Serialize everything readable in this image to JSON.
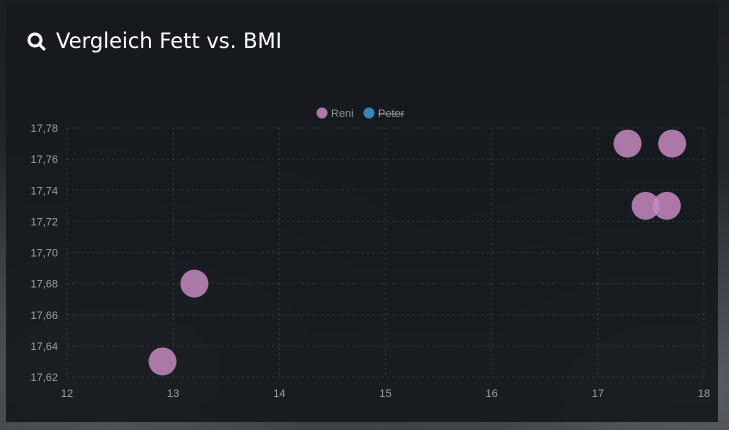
{
  "header": {
    "title": "Vergleich Fett vs. BMI",
    "icon": "search-icon"
  },
  "chart_data": {
    "type": "scatter",
    "title": "Vergleich Fett vs. BMI",
    "xlabel": "",
    "ylabel": "",
    "xlim": [
      12,
      18
    ],
    "ylim": [
      17.62,
      17.78
    ],
    "x_ticks": [
      "12",
      "13",
      "14",
      "15",
      "16",
      "17",
      "18"
    ],
    "y_ticks": [
      "17,62",
      "17,64",
      "17,66",
      "17,68",
      "17,70",
      "17,72",
      "17,74",
      "17,76",
      "17,78"
    ],
    "grid": true,
    "legend_position": "top-center",
    "series": [
      {
        "name": "Reni",
        "color": "#c689c0",
        "hidden": false,
        "points": [
          {
            "x": 12.9,
            "y": 17.63
          },
          {
            "x": 13.2,
            "y": 17.68
          },
          {
            "x": 17.28,
            "y": 17.77
          },
          {
            "x": 17.7,
            "y": 17.77
          },
          {
            "x": 17.45,
            "y": 17.73
          },
          {
            "x": 17.65,
            "y": 17.73
          }
        ]
      },
      {
        "name": "Peter",
        "color": "#3f9ad6",
        "hidden": true,
        "points": []
      }
    ]
  }
}
